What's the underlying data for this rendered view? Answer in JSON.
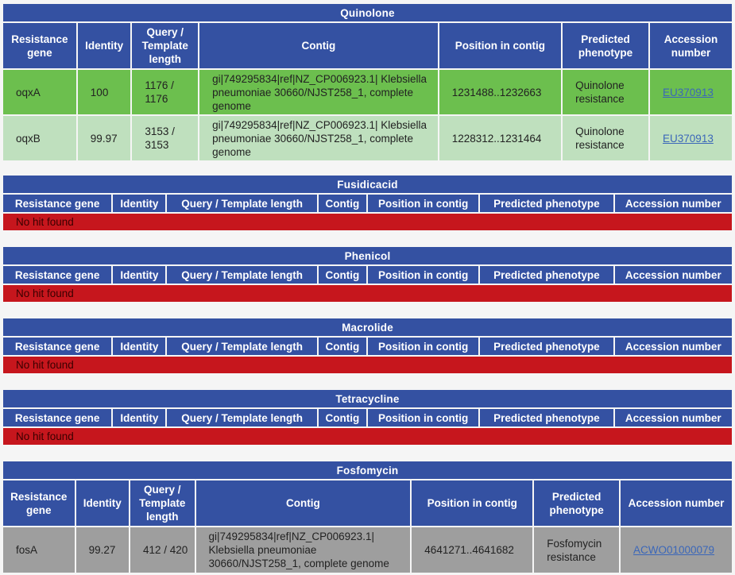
{
  "headers_wrapped": [
    "Resistance gene",
    "Identity",
    "Query / Template length",
    "Contig",
    "Position in contig",
    "Predicted phenotype",
    "Accession number"
  ],
  "headers": [
    "Resistance gene",
    "Identity",
    "Query / Template length",
    "Contig",
    "Position in contig",
    "Predicted phenotype",
    "Accession number"
  ],
  "no_hit": "No hit found",
  "colors": {
    "header": "#3451a2",
    "nohit": "#c6161d",
    "hit_primary": "#6cbf4e",
    "hit_secondary": "#bfe0be",
    "hit_grey": "#9e9e9e",
    "link": "#3b67b9"
  },
  "quinolone": {
    "title": "Quinolone",
    "rows": [
      {
        "gene": "oqxA",
        "identity": "100",
        "length": "1176 / 1176",
        "contig": "gi|749295834|ref|NZ_CP006923.1| Klebsiella pneumoniae 30660/NJST258_1, complete genome",
        "position": "1231488..1232663",
        "phenotype": "Quinolone resistance",
        "accession": "EU370913"
      },
      {
        "gene": "oqxB",
        "identity": "99.97",
        "length": "3153 / 3153",
        "contig": "gi|749295834|ref|NZ_CP006923.1| Klebsiella pneumoniae 30660/NJST258_1, complete genome",
        "position": "1228312..1231464",
        "phenotype": "Quinolone resistance",
        "accession": "EU370913"
      }
    ]
  },
  "fusidicacid": {
    "title": "Fusidicacid"
  },
  "phenicol": {
    "title": "Phenicol"
  },
  "macrolide": {
    "title": "Macrolide"
  },
  "tetracycline": {
    "title": "Tetracycline"
  },
  "fosfomycin": {
    "title": "Fosfomycin",
    "rows": [
      {
        "gene": "fosA",
        "identity": "99.27",
        "length": "412 / 420",
        "contig": "gi|749295834|ref|NZ_CP006923.1| Klebsiella pneumoniae 30660/NJST258_1, complete genome",
        "position": "4641271..4641682",
        "phenotype": "Fosfomycin resistance",
        "accession": "ACWO01000079"
      }
    ]
  }
}
